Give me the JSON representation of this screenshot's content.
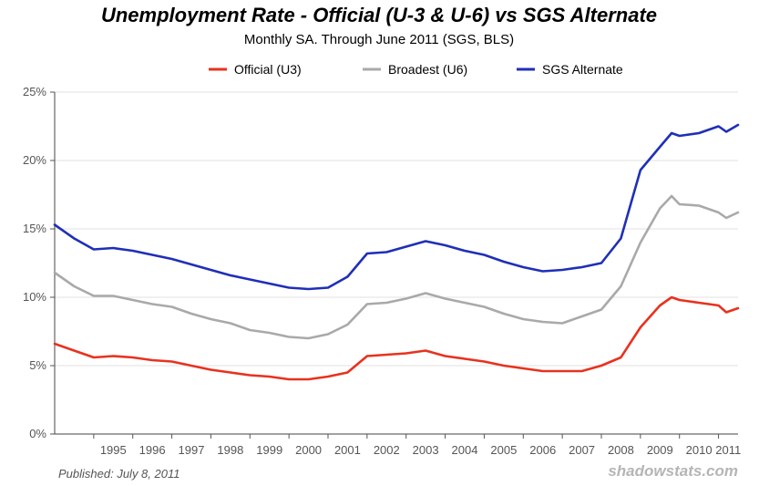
{
  "chart_data": {
    "type": "line",
    "title": "Unemployment Rate - Official (U-3 & U-6) vs SGS Alternate",
    "subtitle": "Monthly SA. Through June 2011  (SGS, BLS)",
    "xlabel": "",
    "ylabel": "",
    "x_range": [
      1994.0,
      2011.5
    ],
    "ylim": [
      0,
      25
    ],
    "y_ticks": [
      0,
      5,
      10,
      15,
      20,
      25
    ],
    "y_tick_labels": [
      "0%",
      "5%",
      "10%",
      "15%",
      "20%",
      "25%"
    ],
    "x_tick_labels": [
      "1995",
      "1996",
      "1997",
      "1998",
      "1999",
      "2000",
      "2001",
      "2002",
      "2003",
      "2004",
      "2005",
      "2006",
      "2007",
      "2008",
      "2009",
      "2010",
      "2011"
    ],
    "grid": true,
    "legend": "top",
    "series": [
      {
        "name": "Official (U3)",
        "color": "#e8321e",
        "x": [
          1994.0,
          1994.5,
          1995.0,
          1995.5,
          1996.0,
          1996.5,
          1997.0,
          1997.5,
          1998.0,
          1998.5,
          1999.0,
          1999.5,
          2000.0,
          2000.5,
          2001.0,
          2001.5,
          2002.0,
          2002.5,
          2003.0,
          2003.5,
          2004.0,
          2004.5,
          2005.0,
          2005.5,
          2006.0,
          2006.5,
          2007.0,
          2007.5,
          2008.0,
          2008.5,
          2009.0,
          2009.5,
          2009.8,
          2010.0,
          2010.5,
          2011.0,
          2011.2,
          2011.5
        ],
        "y": [
          6.6,
          6.1,
          5.6,
          5.7,
          5.6,
          5.4,
          5.3,
          5.0,
          4.7,
          4.5,
          4.3,
          4.2,
          4.0,
          4.0,
          4.2,
          4.5,
          5.7,
          5.8,
          5.9,
          6.1,
          5.7,
          5.5,
          5.3,
          5.0,
          4.8,
          4.6,
          4.6,
          4.6,
          5.0,
          5.6,
          7.8,
          9.4,
          10.0,
          9.8,
          9.6,
          9.4,
          8.9,
          9.2
        ]
      },
      {
        "name": "Broadest (U6)",
        "color": "#a9a9a9",
        "x": [
          1994.0,
          1994.5,
          1995.0,
          1995.5,
          1996.0,
          1996.5,
          1997.0,
          1997.5,
          1998.0,
          1998.5,
          1999.0,
          1999.5,
          2000.0,
          2000.5,
          2001.0,
          2001.5,
          2002.0,
          2002.5,
          2003.0,
          2003.5,
          2004.0,
          2004.5,
          2005.0,
          2005.5,
          2006.0,
          2006.5,
          2007.0,
          2007.5,
          2008.0,
          2008.5,
          2009.0,
          2009.5,
          2009.8,
          2010.0,
          2010.5,
          2011.0,
          2011.2,
          2011.5
        ],
        "y": [
          11.8,
          10.8,
          10.1,
          10.1,
          9.8,
          9.5,
          9.3,
          8.8,
          8.4,
          8.1,
          7.6,
          7.4,
          7.1,
          7.0,
          7.3,
          8.0,
          9.5,
          9.6,
          9.9,
          10.3,
          9.9,
          9.6,
          9.3,
          8.8,
          8.4,
          8.2,
          8.1,
          8.6,
          9.1,
          10.8,
          14.0,
          16.5,
          17.4,
          16.8,
          16.7,
          16.2,
          15.8,
          16.2
        ]
      },
      {
        "name": "SGS Alternate",
        "color": "#1f2fb8",
        "x": [
          1994.0,
          1994.5,
          1995.0,
          1995.5,
          1996.0,
          1996.5,
          1997.0,
          1997.5,
          1998.0,
          1998.5,
          1999.0,
          1999.5,
          2000.0,
          2000.5,
          2001.0,
          2001.5,
          2002.0,
          2002.5,
          2003.0,
          2003.5,
          2004.0,
          2004.5,
          2005.0,
          2005.5,
          2006.0,
          2006.5,
          2007.0,
          2007.5,
          2008.0,
          2008.5,
          2009.0,
          2009.5,
          2009.8,
          2010.0,
          2010.5,
          2011.0,
          2011.2,
          2011.5
        ],
        "y": [
          15.3,
          14.3,
          13.5,
          13.6,
          13.4,
          13.1,
          12.8,
          12.4,
          12.0,
          11.6,
          11.3,
          11.0,
          10.7,
          10.6,
          10.7,
          11.5,
          13.2,
          13.3,
          13.7,
          14.1,
          13.8,
          13.4,
          13.1,
          12.6,
          12.2,
          11.9,
          12.0,
          12.2,
          12.5,
          14.3,
          19.3,
          21.0,
          22.0,
          21.8,
          22.0,
          22.5,
          22.1,
          22.6
        ]
      }
    ]
  },
  "credit": "Published: July 8, 2011",
  "brand": "shadowstats.com"
}
